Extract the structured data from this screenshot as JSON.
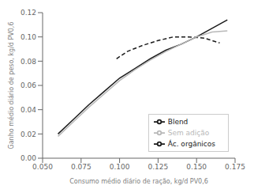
{
  "chart_data": {
    "type": "line",
    "xlabel": "Consumo médio diário de ração, kg/d PV0,6",
    "ylabel": "Ganho médio diário de peso, kg/d PV0,6",
    "xlim": [
      0.05,
      0.175
    ],
    "ylim": [
      0,
      0.12
    ],
    "xticks": [
      {
        "value": 0.05,
        "label": "0.050"
      },
      0.075,
      {
        "value": 0.1,
        "label": "0.100"
      },
      0.125,
      {
        "value": 0.15,
        "label": "0.150"
      },
      0.175
    ],
    "yticks": [
      {
        "value": 0,
        "label": "0.00"
      },
      0.02,
      0.04,
      0.06,
      0.08,
      {
        "value": 0.1,
        "label": "0.10"
      },
      0.12
    ],
    "grid": false,
    "legend": "lower right",
    "series": [
      {
        "name": "Ác. orgânicos",
        "color": "#1a1a1a",
        "line_style": "solid",
        "x": [
          0.06,
          0.07,
          0.08,
          0.09,
          0.1,
          0.11,
          0.12,
          0.13,
          0.14,
          0.15,
          0.16,
          0.17
        ],
        "values": [
          0.02,
          0.032,
          0.044,
          0.055,
          0.066,
          0.074,
          0.082,
          0.089,
          0.094,
          0.1,
          0.107,
          0.114
        ]
      },
      {
        "name": "Blend",
        "color": "#1a1a1a",
        "line_style": "dashed",
        "x": [
          0.098,
          0.105,
          0.115,
          0.125,
          0.135,
          0.145,
          0.155,
          0.165
        ],
        "values": [
          0.082,
          0.088,
          0.093,
          0.097,
          0.1,
          0.1,
          0.099,
          0.095
        ]
      },
      {
        "name": "Sem adição",
        "color": "#b8b8b8",
        "line_style": "solid",
        "x": [
          0.06,
          0.07,
          0.08,
          0.09,
          0.1,
          0.11,
          0.12,
          0.13,
          0.14,
          0.15,
          0.16,
          0.17
        ],
        "values": [
          0.018,
          0.03,
          0.042,
          0.053,
          0.064,
          0.073,
          0.081,
          0.088,
          0.094,
          0.1,
          0.104,
          0.105
        ]
      }
    ]
  }
}
